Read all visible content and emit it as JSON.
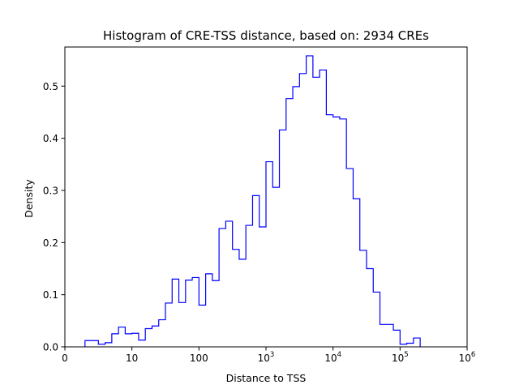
{
  "chart_data": {
    "type": "step-histogram",
    "title": "Histogram of CRE-TSS distance, based on: 2934 CREs",
    "xlabel": "Distance to TSS",
    "ylabel": "Density",
    "x_scale": "log10",
    "x_range_log10": [
      0,
      6
    ],
    "ylim": [
      0,
      0.575
    ],
    "line_color": "#0000ff",
    "grid": false,
    "legend": "none",
    "x_tick_labels": [
      {
        "log10": 0,
        "base": "0",
        "sup": ""
      },
      {
        "log10": 1,
        "base": "10",
        "sup": ""
      },
      {
        "log10": 2,
        "base": "100",
        "sup": ""
      },
      {
        "log10": 3,
        "base": "10",
        "sup": "3"
      },
      {
        "log10": 4,
        "base": "10",
        "sup": "4"
      },
      {
        "log10": 5,
        "base": "10",
        "sup": "5"
      },
      {
        "log10": 6,
        "base": "10",
        "sup": "6"
      }
    ],
    "y_ticks": [
      {
        "value": 0.0,
        "label": "0.0"
      },
      {
        "value": 0.1,
        "label": "0.1"
      },
      {
        "value": 0.2,
        "label": "0.2"
      },
      {
        "value": 0.3,
        "label": "0.3"
      },
      {
        "value": 0.4,
        "label": "0.4"
      },
      {
        "value": 0.5,
        "label": "0.5"
      }
    ],
    "bin_start_log10": 0.3,
    "bin_width_log10": 0.1,
    "density_values": [
      0.012,
      0.012,
      0.005,
      0.008,
      0.025,
      0.038,
      0.025,
      0.026,
      0.013,
      0.035,
      0.04,
      0.052,
      0.084,
      0.13,
      0.085,
      0.128,
      0.133,
      0.08,
      0.14,
      0.127,
      0.227,
      0.241,
      0.187,
      0.168,
      0.233,
      0.29,
      0.23,
      0.355,
      0.306,
      0.416,
      0.476,
      0.499,
      0.524,
      0.558,
      0.517,
      0.531,
      0.445,
      0.441,
      0.437,
      0.342,
      0.284,
      0.185,
      0.15,
      0.105,
      0.043,
      0.043,
      0.032,
      0.005,
      0.007,
      0.017
    ]
  }
}
